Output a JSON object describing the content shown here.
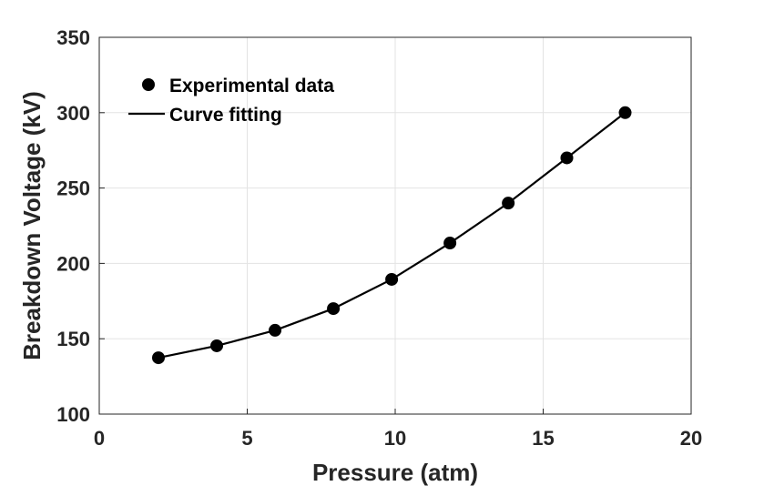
{
  "chart_data": {
    "type": "scatter-line",
    "xlabel": "Pressure (atm)",
    "ylabel": "Breakdown Voltage (kV)",
    "xlim": [
      0,
      20
    ],
    "xticks": [
      0,
      5,
      10,
      15,
      20
    ],
    "ylim": [
      100,
      350
    ],
    "yticks": [
      100,
      150,
      200,
      250,
      300,
      350
    ],
    "grid": true,
    "legend": "upper-left",
    "series": [
      {
        "name": "Experimental data",
        "color": "#000000",
        "mode": "markers",
        "x": [
          2,
          3.97,
          5.94,
          7.91,
          9.88,
          11.85,
          13.82,
          15.8,
          17.77
        ],
        "values": [
          137.4,
          145.3,
          155.6,
          170,
          189.4,
          213.5,
          240,
          270,
          300
        ]
      },
      {
        "name": "Curve fitting",
        "color": "#000000",
        "mode": "line",
        "x": [
          2,
          3.97,
          5.94,
          7.91,
          9.88,
          11.85,
          13.82,
          15.8,
          17.77
        ],
        "values": [
          137.4,
          145.3,
          155.6,
          170,
          189.4,
          213.5,
          240,
          270,
          300
        ]
      }
    ]
  }
}
